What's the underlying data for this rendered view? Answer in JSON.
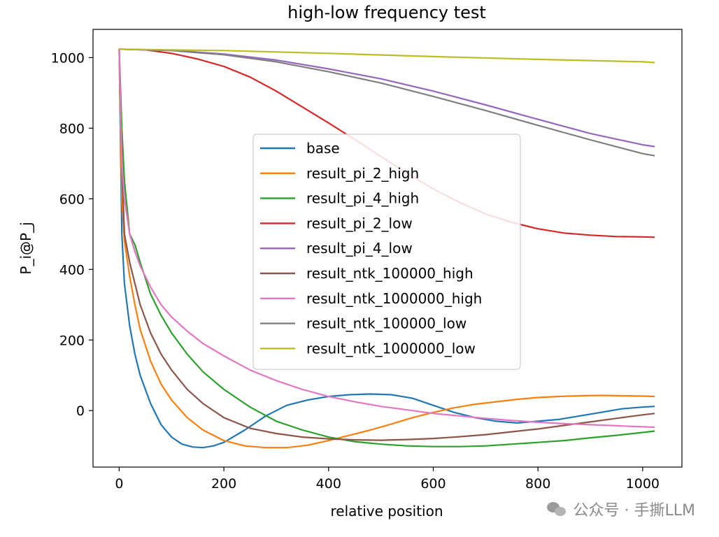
{
  "chart_data": {
    "type": "line",
    "title": "high-low frequency test",
    "xlabel": "relative position",
    "ylabel": "P_i@P_j",
    "xlim": [
      -50,
      1075
    ],
    "ylim": [
      -160,
      1080
    ],
    "xticks": [
      0,
      200,
      400,
      600,
      800,
      1000
    ],
    "yticks": [
      0,
      200,
      400,
      600,
      800,
      1000
    ],
    "grid": false,
    "legend_position": "center",
    "series": [
      {
        "name": "base",
        "color": "#1f77b4",
        "x": [
          0,
          5,
          10,
          20,
          30,
          40,
          60,
          80,
          100,
          120,
          140,
          160,
          180,
          200,
          240,
          280,
          320,
          360,
          400,
          440,
          480,
          520,
          560,
          600,
          640,
          680,
          720,
          760,
          800,
          840,
          880,
          920,
          960,
          1000,
          1023
        ],
        "y": [
          1024,
          500,
          360,
          240,
          160,
          100,
          20,
          -40,
          -75,
          -95,
          -103,
          -105,
          -100,
          -90,
          -55,
          -15,
          15,
          30,
          40,
          45,
          47,
          45,
          35,
          15,
          -5,
          -20,
          -30,
          -35,
          -30,
          -25,
          -15,
          -5,
          5,
          10,
          12
        ]
      },
      {
        "name": "result_pi_2_high",
        "color": "#ff7f0e",
        "x": [
          0,
          5,
          10,
          20,
          30,
          40,
          60,
          80,
          100,
          130,
          160,
          200,
          240,
          280,
          320,
          360,
          400,
          440,
          480,
          520,
          560,
          600,
          640,
          680,
          720,
          760,
          800,
          840,
          880,
          920,
          960,
          1000,
          1023
        ],
        "y": [
          1024,
          600,
          480,
          380,
          300,
          230,
          140,
          75,
          30,
          -20,
          -55,
          -85,
          -100,
          -105,
          -105,
          -98,
          -85,
          -70,
          -55,
          -38,
          -20,
          -5,
          8,
          18,
          25,
          32,
          37,
          40,
          42,
          43,
          42,
          41,
          40
        ]
      },
      {
        "name": "result_pi_4_high",
        "color": "#2ca02c",
        "x": [
          0,
          5,
          10,
          20,
          30,
          40,
          60,
          80,
          100,
          130,
          160,
          200,
          250,
          300,
          350,
          400,
          450,
          500,
          550,
          600,
          650,
          700,
          750,
          800,
          850,
          900,
          950,
          1000,
          1023
        ],
        "y": [
          1024,
          800,
          650,
          500,
          470,
          420,
          330,
          270,
          220,
          160,
          110,
          60,
          10,
          -30,
          -55,
          -75,
          -88,
          -95,
          -100,
          -102,
          -102,
          -100,
          -95,
          -90,
          -85,
          -77,
          -70,
          -62,
          -58
        ]
      },
      {
        "name": "result_pi_2_low",
        "color": "#d62728",
        "x": [
          0,
          50,
          100,
          150,
          200,
          250,
          300,
          350,
          400,
          450,
          500,
          550,
          600,
          650,
          700,
          750,
          800,
          850,
          900,
          950,
          1000,
          1023
        ],
        "y": [
          1024,
          1022,
          1012,
          996,
          975,
          945,
          905,
          860,
          815,
          768,
          720,
          672,
          628,
          590,
          557,
          533,
          515,
          503,
          497,
          493,
          492,
          491
        ]
      },
      {
        "name": "result_pi_4_low",
        "color": "#9467bd",
        "x": [
          0,
          100,
          200,
          300,
          400,
          500,
          600,
          700,
          800,
          900,
          1000,
          1023
        ],
        "y": [
          1024,
          1021,
          1010,
          993,
          968,
          940,
          905,
          866,
          825,
          785,
          753,
          748
        ]
      },
      {
        "name": "result_ntk_100000_high",
        "color": "#8c564b",
        "x": [
          0,
          5,
          10,
          20,
          30,
          40,
          60,
          80,
          100,
          130,
          160,
          200,
          250,
          300,
          350,
          400,
          450,
          500,
          550,
          600,
          650,
          700,
          750,
          800,
          850,
          900,
          950,
          1000,
          1023
        ],
        "y": [
          1024,
          700,
          500,
          420,
          360,
          300,
          220,
          160,
          115,
          60,
          20,
          -20,
          -50,
          -65,
          -75,
          -80,
          -83,
          -84,
          -82,
          -79,
          -74,
          -68,
          -60,
          -52,
          -42,
          -32,
          -22,
          -12,
          -8
        ]
      },
      {
        "name": "result_ntk_1000000_high",
        "color": "#e377c2",
        "x": [
          0,
          5,
          10,
          20,
          30,
          40,
          60,
          80,
          100,
          130,
          160,
          200,
          250,
          300,
          350,
          400,
          450,
          500,
          550,
          600,
          650,
          700,
          750,
          800,
          850,
          900,
          950,
          1000,
          1023
        ],
        "y": [
          1024,
          700,
          600,
          500,
          450,
          410,
          350,
          300,
          265,
          225,
          190,
          155,
          115,
          85,
          60,
          40,
          25,
          12,
          2,
          -8,
          -15,
          -22,
          -28,
          -33,
          -37,
          -40,
          -43,
          -46,
          -47
        ]
      },
      {
        "name": "result_ntk_100000_low",
        "color": "#7f7f7f",
        "x": [
          0,
          100,
          200,
          300,
          400,
          500,
          600,
          700,
          800,
          900,
          1000,
          1023
        ],
        "y": [
          1024,
          1020,
          1008,
          988,
          960,
          928,
          890,
          850,
          808,
          767,
          728,
          722
        ]
      },
      {
        "name": "result_ntk_1000000_low",
        "color": "#bcbd22",
        "x": [
          0,
          200,
          400,
          600,
          800,
          1000,
          1023
        ],
        "y": [
          1024,
          1020,
          1012,
          1003,
          995,
          988,
          986
        ]
      }
    ]
  },
  "watermark": {
    "icon": "wechat-icon",
    "text": "公众号 · 手撕LLM"
  }
}
